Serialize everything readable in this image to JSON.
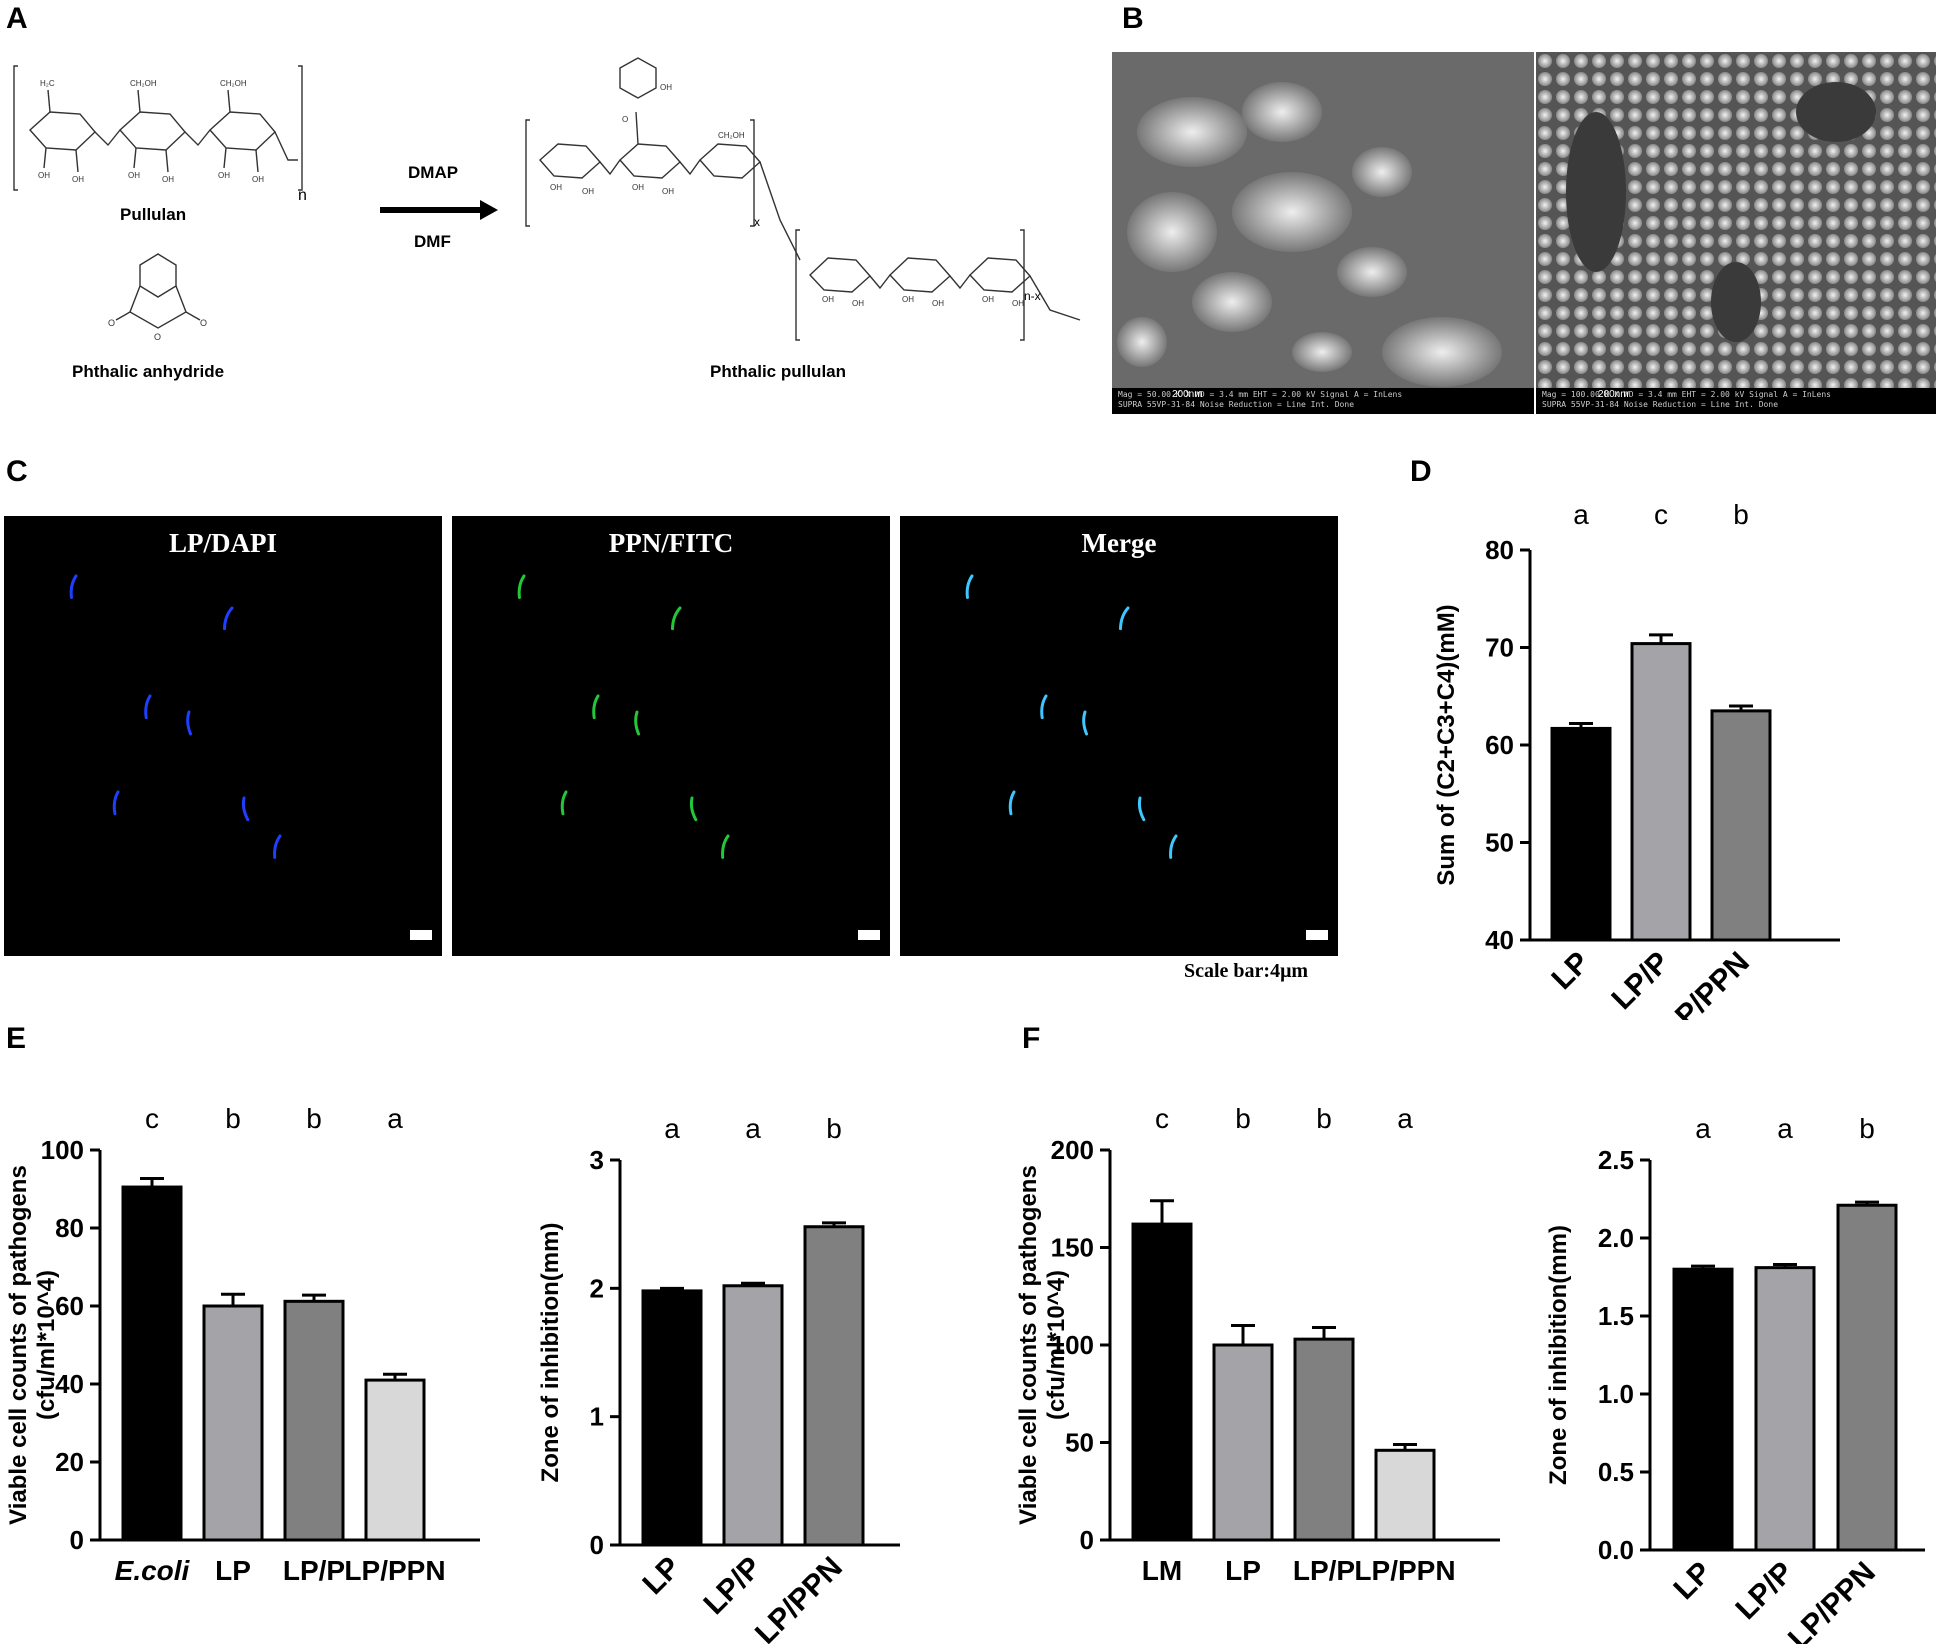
{
  "panels": {
    "A": {
      "label": "A",
      "reagent_top": "DMAP",
      "reagent_bottom": "DMF",
      "pullulan_label": "Pullulan",
      "anhydride_label": "Phthalic anhydride",
      "product_label": "Phthalic pullulan",
      "repeat_n": "n",
      "repeat_x": "x",
      "repeat_nx": "n-x"
    },
    "B": {
      "label": "B",
      "sem_left": {
        "info": "Mag = 50.00 K X   WD = 3.4 mm   EHT = 2.00 kV   Signal A = InLens",
        "info2": "SUPRA 55VP-31-84   Noise Reduction = Line Int. Done",
        "scale": "200nm"
      },
      "sem_right": {
        "info": "Mag = 100.00 K X   WD = 3.4 mm   EHT = 2.00 kV   Signal A = InLens",
        "info2": "SUPRA 55VP-31-84   Noise Reduction = Line Int. Done",
        "scale": "200nm"
      }
    },
    "C": {
      "label": "C",
      "images": [
        {
          "title": "LP/DAPI",
          "color": "#1f3fff"
        },
        {
          "title": "PPN/FITC",
          "color": "#22c838"
        },
        {
          "title": "Merge",
          "color": "#3ec8ff"
        }
      ],
      "scale_note": "Scale bar:4μm"
    },
    "D": {
      "label": "D"
    },
    "E": {
      "label": "E"
    },
    "F": {
      "label": "F"
    }
  },
  "chart_data": [
    {
      "id": "D",
      "type": "bar",
      "categories": [
        "LP",
        "LP/P",
        "LP/PPN"
      ],
      "values": [
        61.7,
        70.4,
        63.5
      ],
      "errors": [
        0.5,
        0.9,
        0.5
      ],
      "significance": [
        "a",
        "c",
        "b"
      ],
      "ylabel": "Sum of (C2+C3+C4)(mM)",
      "ylim": [
        40,
        80
      ],
      "yticks": [
        40,
        50,
        60,
        70,
        80
      ],
      "colors": [
        "#000000",
        "#a4a4a8",
        "#808080"
      ],
      "rotated_labels": true
    },
    {
      "id": "E1",
      "type": "bar",
      "categories": [
        "E.coli",
        "LP",
        "LP/P",
        "LP/PPN"
      ],
      "italic_category": "E.coli",
      "values": [
        90.5,
        60,
        61.2,
        41
      ],
      "errors": [
        2.2,
        3,
        1.6,
        1.5
      ],
      "significance": [
        "c",
        "b",
        "b",
        "a"
      ],
      "ylabel": "Viable cell counts of pathogens (cfu/ml*10^4)",
      "ylabel_lines": [
        "Viable cell counts of pathogens",
        "(cfu/ml*10^4)"
      ],
      "ylim": [
        0,
        100
      ],
      "yticks": [
        0,
        20,
        40,
        60,
        80,
        100
      ],
      "colors": [
        "#000000",
        "#a4a4a8",
        "#808080",
        "#d8d8d8"
      ],
      "rotated_labels": false
    },
    {
      "id": "E2",
      "type": "bar",
      "categories": [
        "LP",
        "LP/P",
        "LP/PPN"
      ],
      "values": [
        1.98,
        2.02,
        2.48
      ],
      "errors": [
        0.02,
        0.02,
        0.03
      ],
      "significance": [
        "a",
        "a",
        "b"
      ],
      "ylabel": "Zone of inhibition(mm)",
      "ylim": [
        0,
        3
      ],
      "yticks": [
        0,
        1,
        2,
        3
      ],
      "colors": [
        "#000000",
        "#a4a4a8",
        "#808080"
      ],
      "rotated_labels": true
    },
    {
      "id": "F1",
      "type": "bar",
      "categories": [
        "LM",
        "LP",
        "LP/P",
        "LP/PPN"
      ],
      "values": [
        162,
        100,
        103,
        46
      ],
      "errors": [
        12,
        10,
        6,
        3
      ],
      "significance": [
        "c",
        "b",
        "b",
        "a"
      ],
      "ylabel": "Viable cell counts of pathogens (cfu/ml*10^4)",
      "ylabel_lines": [
        "Viable cell counts of pathogens",
        "(cfu/ml*10^4)"
      ],
      "ylim": [
        0,
        200
      ],
      "yticks": [
        0,
        50,
        100,
        150,
        200
      ],
      "colors": [
        "#000000",
        "#a4a4a8",
        "#808080",
        "#d8d8d8"
      ],
      "rotated_labels": false
    },
    {
      "id": "F2",
      "type": "bar",
      "categories": [
        "LP",
        "LP/P",
        "LP/PPN"
      ],
      "values": [
        1.8,
        1.81,
        2.21
      ],
      "errors": [
        0.02,
        0.02,
        0.02
      ],
      "significance": [
        "a",
        "a",
        "b"
      ],
      "ylabel": "Zone of inhibition(mm)",
      "ylim": [
        0,
        2.5
      ],
      "yticks": [
        "0.0",
        "0.5",
        "1.0",
        "1.5",
        "2.0",
        "2.5"
      ],
      "colors": [
        "#000000",
        "#a4a4a8",
        "#808080"
      ],
      "rotated_labels": true
    }
  ]
}
